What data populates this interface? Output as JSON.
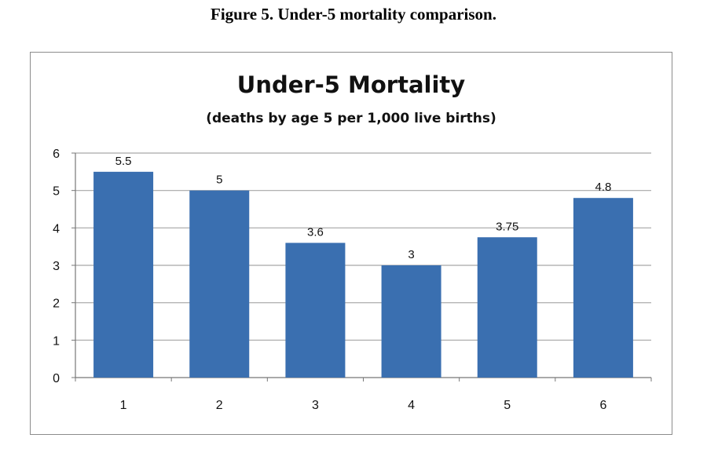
{
  "figure": {
    "caption": "Figure 5.  Under-5 mortality comparison."
  },
  "chart_data": {
    "type": "bar",
    "title": "Under-5 Mortality",
    "subtitle": "(deaths by age 5 per 1,000 live births)",
    "categories": [
      "1",
      "2",
      "3",
      "4",
      "5",
      "6"
    ],
    "values": [
      5.5,
      5,
      3.6,
      3,
      3.75,
      4.8
    ],
    "data_labels": [
      "5.5",
      "5",
      "3.6",
      "3",
      "3.75",
      "4.8"
    ],
    "xlabel": "",
    "ylabel": "",
    "ylim": [
      0,
      6
    ],
    "yticks": [
      "0",
      "1",
      "2",
      "3",
      "4",
      "5",
      "6"
    ],
    "grid": true,
    "bar_color": "#3a6fb0",
    "grid_color": "#a6a6a6"
  }
}
